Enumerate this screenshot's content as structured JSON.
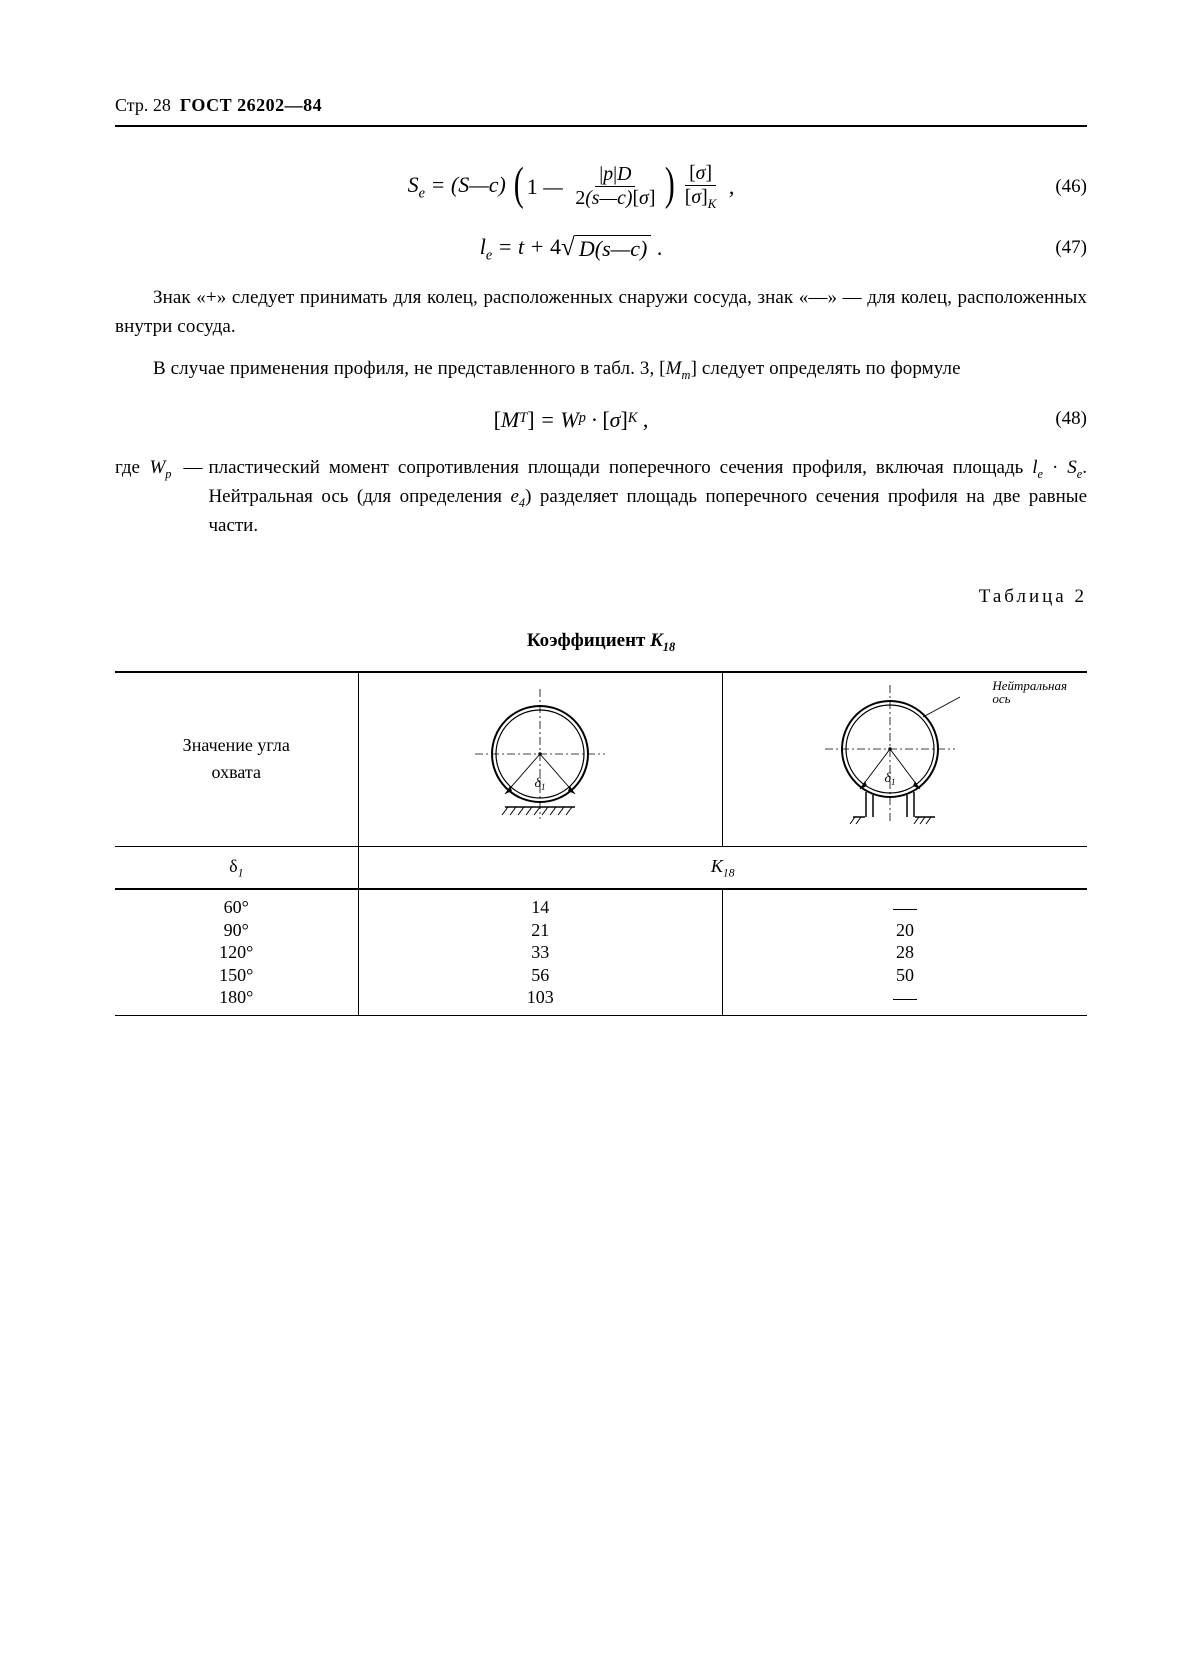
{
  "header": {
    "page_label": "Стр. 28",
    "standard": "ГОСТ 26202—84"
  },
  "equations": {
    "eq46": {
      "lhs": "S<sub class='sub'>e</sub>",
      "number": "(46)"
    },
    "eq47": {
      "lhs": "l<sub class='sub'>e</sub>",
      "number": "(47)"
    },
    "eq48": {
      "number": "(48)"
    }
  },
  "paragraphs": {
    "p1": "Знак «+» следует принимать для колец, расположенных снаружи сосуда, знак «—» — для колец, расположенных внутри сосуда.",
    "p2_a": "В случае применения профиля, не представленного в табл. 3, [",
    "p2_b": "] следует определять по формуле",
    "p3_where": "где ",
    "p3_var": "W",
    "p3_sub": "p",
    "p3_text_a": "пластический момент сопротивления площади поперечного сечения профиля, включая площадь ",
    "p3_le": "l",
    "p3_se": "S",
    "p3_text_b": ". Нейтральная ось (для определения ",
    "p3_e4": "e",
    "p3_text_c": ") разделяет площадь поперечного сечения профиля на две равные части."
  },
  "table": {
    "label": "Таблица 2",
    "caption_prefix": "Коэффициент ",
    "caption_sym": "K",
    "caption_sub": "18",
    "col1_header": "Значение угла\nохвата",
    "col1_sym": "δ",
    "col1_sub": "1",
    "row2_sym": "K",
    "row2_sub": "18",
    "neutral_axis_label": "Нейтральная\nось",
    "diagram_label": "δ",
    "diagram_label_sub": "1",
    "angles": [
      "60°",
      "90°",
      "120°",
      "150°",
      "180°"
    ],
    "col2_values": [
      "14",
      "21",
      "33",
      "56",
      "103"
    ],
    "col3_values": [
      "—",
      "20",
      "28",
      "50",
      "—"
    ]
  },
  "colors": {
    "text": "#000000",
    "background": "#ffffff",
    "rule": "#000000"
  }
}
